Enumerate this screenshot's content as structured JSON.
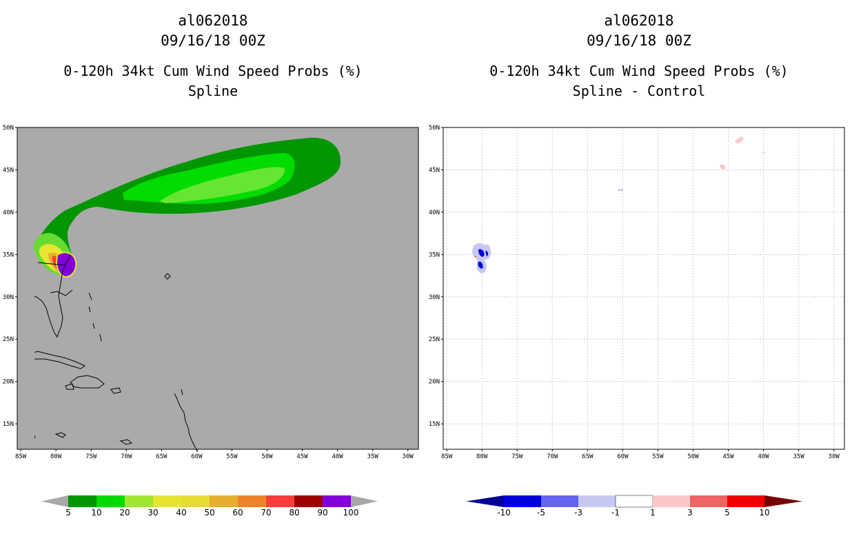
{
  "chart_data": [
    {
      "type": "heatmap",
      "storm_id": "al062018",
      "datetime": "09/16/18 00Z",
      "title": "0-120h 34kt Cum Wind Speed Probs (%)",
      "subtitle": "Spline",
      "x_ticks": [
        "85W",
        "80W",
        "75W",
        "70W",
        "65W",
        "60W",
        "55W",
        "50W",
        "45W",
        "40W",
        "35W",
        "30W"
      ],
      "y_ticks": [
        "50N",
        "45N",
        "40N",
        "35N",
        "30N",
        "25N",
        "20N",
        "15N"
      ],
      "xlim": [
        -85.5,
        -28.5
      ],
      "ylim": [
        12,
        50
      ],
      "grid": false,
      "background": "#aaaaaa",
      "colorbar": {
        "labels": [
          "5",
          "10",
          "20",
          "30",
          "40",
          "50",
          "60",
          "70",
          "80",
          "90",
          "100"
        ],
        "colors": [
          "#009600",
          "#00dc00",
          "#a0e632",
          "#e6e632",
          "#e6dc32",
          "#e6af2d",
          "#f08228",
          "#fa3c3c",
          "#a00000",
          "#8200dc"
        ],
        "end_color": "#a8a8a8"
      }
    },
    {
      "type": "heatmap",
      "storm_id": "al062018",
      "datetime": "09/16/18 00Z",
      "title": "0-120h 34kt Cum Wind Speed Probs (%)",
      "subtitle": "Spline - Control",
      "x_ticks": [
        "85W",
        "80W",
        "75W",
        "70W",
        "65W",
        "60W",
        "55W",
        "50W",
        "45W",
        "40W",
        "35W",
        "30W"
      ],
      "y_ticks": [
        "50N",
        "45N",
        "40N",
        "35N",
        "30N",
        "25N",
        "20N",
        "15N"
      ],
      "xlim": [
        -85.5,
        -28.5
      ],
      "ylim": [
        12,
        50
      ],
      "grid": true,
      "background": "#ffffff",
      "colorbar": {
        "labels": [
          "-10",
          "-5",
          "-3",
          "-1",
          "1",
          "3",
          "5",
          "10"
        ],
        "colors": [
          "#0000dc",
          "#6464f0",
          "#c8c8f5",
          "#ffffff",
          "#fac8c8",
          "#f06464",
          "#f00000"
        ],
        "low_end_color": "#000096",
        "high_end_color": "#780000"
      }
    }
  ]
}
